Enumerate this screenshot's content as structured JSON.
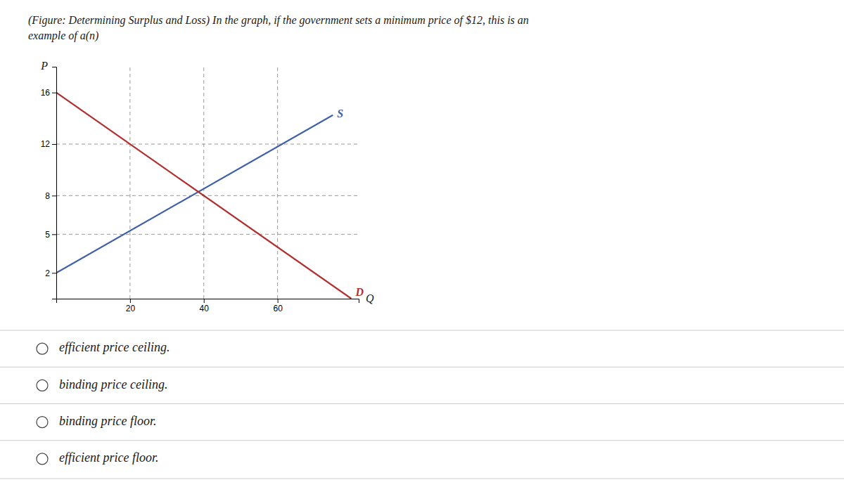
{
  "chart_data": {
    "type": "line",
    "title": "(Figure: Determining Surplus and Loss) In the graph, if the government sets a minimum price of $12, this is an\nexample of a(n)",
    "xlabel": "Q",
    "ylabel": "P",
    "series": [
      {
        "name": "S",
        "color": "#4060a8",
        "x": [
          0,
          75
        ],
        "values": [
          2,
          14.25
        ]
      },
      {
        "name": "D",
        "color": "#b03030",
        "x": [
          0,
          80
        ],
        "values": [
          16,
          0
        ]
      }
    ],
    "xlim": [
      0,
      82
    ],
    "ylim": [
      0,
      18
    ],
    "xticks": [
      20,
      40,
      60
    ],
    "yticks": [
      2,
      5,
      8,
      12,
      16
    ],
    "grid": false,
    "dashed_prices": [
      5,
      8,
      12
    ],
    "dashed_quantities": [
      20,
      40,
      60
    ],
    "annotations": [
      "efficient price ceiling.",
      "binding price ceiling.",
      "binding price floor.",
      "efficient price floor."
    ]
  }
}
